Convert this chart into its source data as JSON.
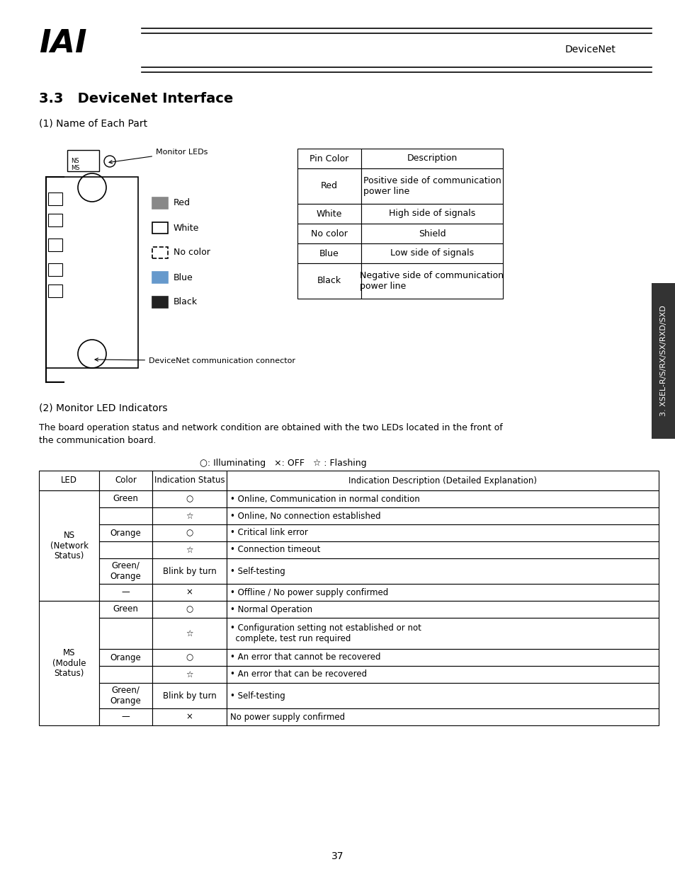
{
  "title_section": "3.3   DeviceNet Interface",
  "section1_header": "(1) Name of Each Part",
  "section2_header": "(2) Monitor LED Indicators",
  "section2_body": "The board operation status and network condition are obtained with the two LEDs located in the front of\nthe communication board.",
  "legend_text": "○: Illuminating   ×: OFF   ☆ : Flashing",
  "header_text": "DeviceNet",
  "page_number": "37",
  "sidebar_text": "3. XSEL-R/S/RX/SX/RXD/SXD",
  "monitor_label": "Monitor LEDs",
  "connector_label": "DeviceNet communication connector",
  "pin_table_headers": [
    "Pin Color",
    "Description"
  ],
  "pin_table_rows": [
    [
      "Red",
      "Positive side of communication\npower line"
    ],
    [
      "White",
      "High side of signals"
    ],
    [
      "No color",
      "Shield"
    ],
    [
      "Blue",
      "Low side of signals"
    ],
    [
      "Black",
      "Negative side of communication\npower line"
    ]
  ],
  "color_labels": [
    "Red",
    "White",
    "No color",
    "Blue",
    "Black"
  ],
  "led_table_headers": [
    "LED",
    "Color",
    "Indication Status",
    "Indication Description (Detailed Explanation)"
  ],
  "led_table_rows": [
    [
      "NS\n(Network\nStatus)",
      "Green",
      "○",
      "• Online, Communication in normal condition"
    ],
    [
      "",
      "",
      "☆",
      "• Online, No connection established"
    ],
    [
      "",
      "Orange",
      "○",
      "• Critical link error"
    ],
    [
      "",
      "",
      "☆",
      "• Connection timeout"
    ],
    [
      "",
      "Green/\nOrange",
      "Blink by turn",
      "• Self-testing"
    ],
    [
      "",
      "—",
      "×",
      "• Offline / No power supply confirmed"
    ],
    [
      "MS\n(Module\nStatus)",
      "Green",
      "○",
      "• Normal Operation"
    ],
    [
      "",
      "",
      "☆",
      "• Configuration setting not established or not\n  complete, test run required"
    ],
    [
      "",
      "Orange",
      "○",
      "• An error that cannot be recovered"
    ],
    [
      "",
      "",
      "☆",
      "• An error that can be recovered"
    ],
    [
      "",
      "Green/\nOrange",
      "Blink by turn",
      "• Self-testing"
    ],
    [
      "",
      "—",
      "×",
      "No power supply confirmed"
    ]
  ],
  "bg_color": "#ffffff",
  "text_color": "#000000",
  "table_border_color": "#000000",
  "sidebar_bg": "#555555"
}
